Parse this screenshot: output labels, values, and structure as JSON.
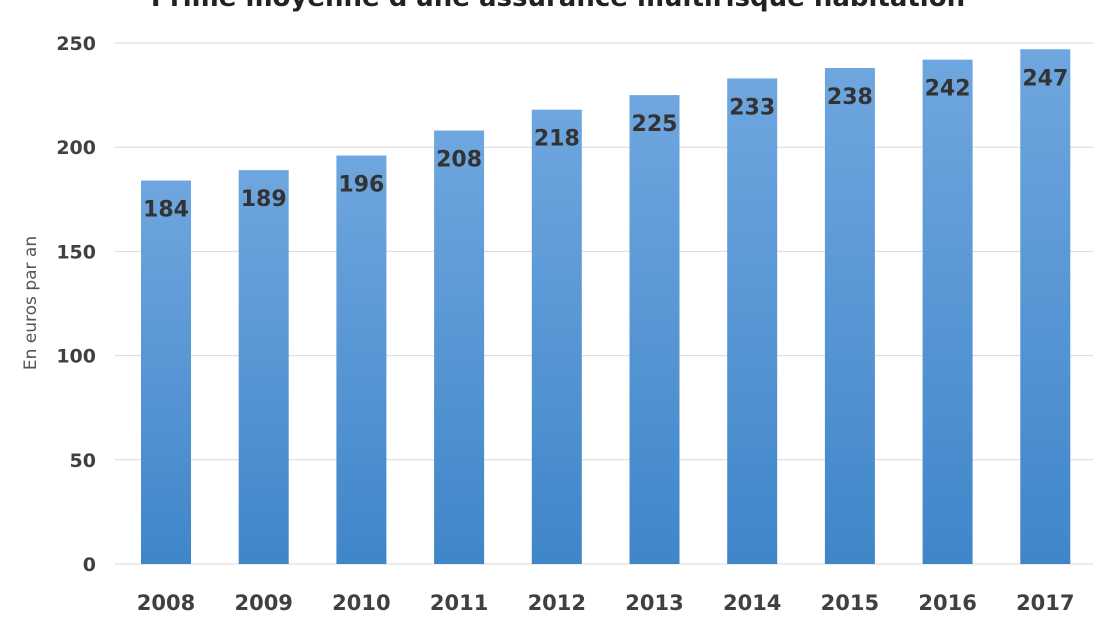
{
  "chart_data": {
    "type": "bar",
    "title": "Prime moyenne d'une assurance multirisque habitation",
    "xlabel": "",
    "ylabel": "En euros par an",
    "categories": [
      "2008",
      "2009",
      "2010",
      "2011",
      "2012",
      "2013",
      "2014",
      "2015",
      "2016",
      "2017"
    ],
    "values": [
      184,
      189,
      196,
      208,
      218,
      225,
      233,
      238,
      242,
      247
    ],
    "ylim": [
      0,
      250
    ],
    "yticks": [
      0,
      50,
      100,
      150,
      200,
      250
    ],
    "grid": true,
    "legend": "none",
    "colors": {
      "bar_top": "#6fa6df",
      "bar_bottom": "#3f86c9"
    }
  }
}
